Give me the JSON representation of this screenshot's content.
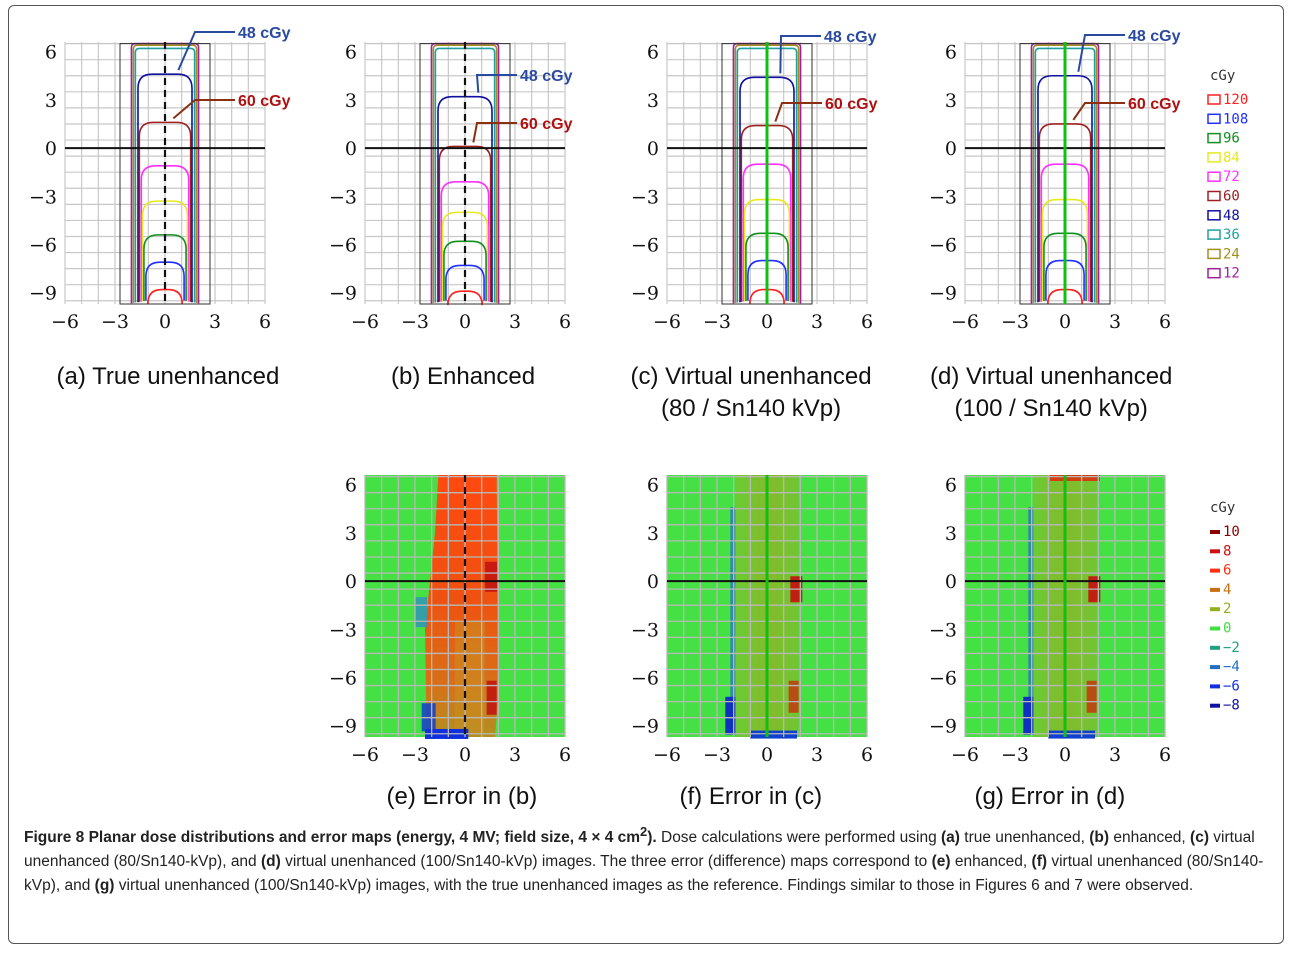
{
  "figure": {
    "ticks": [
      "6",
      "3",
      "0",
      "−3",
      "−6",
      "−9"
    ],
    "xticks": [
      "−6",
      "−3",
      "0",
      "3",
      "6"
    ],
    "dose_panels": [
      {
        "id": "a",
        "label_lines": [
          "(a) True unenhanced"
        ]
      },
      {
        "id": "b",
        "label_lines": [
          "(b) Enhanced"
        ]
      },
      {
        "id": "c",
        "label_lines": [
          "(c) Virtual unenhanced",
          "(80 / Sn140 kVp)"
        ]
      },
      {
        "id": "d",
        "label_lines": [
          "(d) Virtual unenhanced",
          "(100 / Sn140 kVp)"
        ]
      }
    ],
    "error_panels": [
      {
        "id": "e",
        "label_lines": [
          "(e) Error in (b)"
        ]
      },
      {
        "id": "f",
        "label_lines": [
          "(f) Error in (c)"
        ]
      },
      {
        "id": "g",
        "label_lines": [
          "(g) Error in (d)"
        ]
      }
    ],
    "annotations": {
      "blue": "48 cGy",
      "red": "60 cGy"
    },
    "dose_legend": {
      "unit": "cGy",
      "entries": [
        {
          "value": "120",
          "color": "#ff2020"
        },
        {
          "value": "108",
          "color": "#2030ff"
        },
        {
          "value": "96",
          "color": "#109020"
        },
        {
          "value": "84",
          "color": "#e8e820"
        },
        {
          "value": "72",
          "color": "#ff30ff"
        },
        {
          "value": "60",
          "color": "#a02020"
        },
        {
          "value": "48",
          "color": "#1010a0"
        },
        {
          "value": "36",
          "color": "#20a0a0"
        },
        {
          "value": "24",
          "color": "#a09020"
        },
        {
          "value": "12",
          "color": "#a020a0"
        }
      ]
    },
    "error_legend": {
      "unit": "cGy",
      "entries": [
        {
          "value": "10",
          "color": "#8b0000"
        },
        {
          "value": "8",
          "color": "#d01010"
        },
        {
          "value": "6",
          "color": "#ff3010"
        },
        {
          "value": "4",
          "color": "#c87010"
        },
        {
          "value": "2",
          "color": "#90b020"
        },
        {
          "value": "0",
          "color": "#40e040"
        },
        {
          "value": "−2",
          "color": "#20a080"
        },
        {
          "value": "−4",
          "color": "#2070c0"
        },
        {
          "value": "−6",
          "color": "#1030e0"
        },
        {
          "value": "−8",
          "color": "#1010a0"
        }
      ]
    }
  },
  "caption": {
    "title": "Figure 8 Planar dose distributions and error maps (energy, 4 MV; field size, 4 × 4 cm",
    "title_sup": "2",
    "title_end": ").",
    "t1": " Dose calculations were performed using ",
    "a": "(a)",
    "t2": " true unenhanced, ",
    "b": "(b)",
    "t3": " enhanced, ",
    "c": "(c)",
    "t4": " virtual unenhanced (80/Sn140-kVp), and ",
    "d": "(d)",
    "t5": " virtual unenhanced (100/Sn140-kVp) images. The three error (difference) maps correspond to ",
    "e": "(e)",
    "t6": " enhanced, ",
    "f": "(f)",
    "t7": " virtual unenhanced (80/Sn140-kVp), and ",
    "g": "(g)",
    "t8": " virtual unenhanced (100/Sn140-kVp) images, with the true unenhanced images as the reference. Findings similar to those in Figures 6 and 7 were observed."
  }
}
